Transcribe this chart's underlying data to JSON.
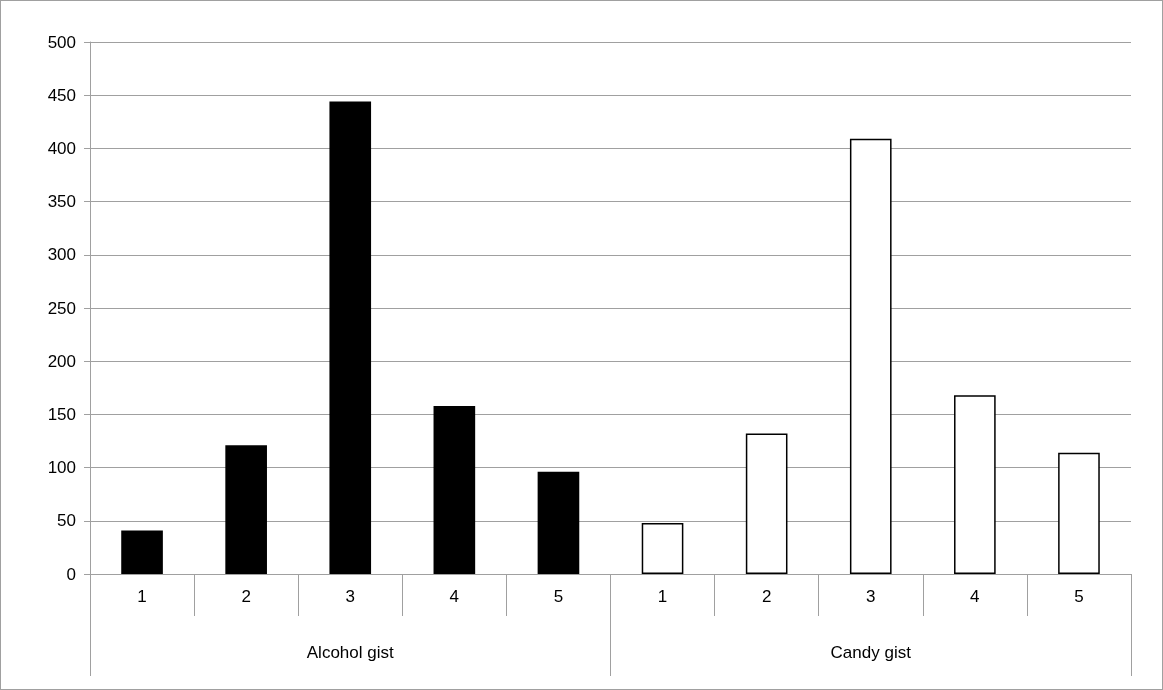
{
  "chart_data": {
    "type": "bar",
    "categories": [
      "1",
      "2",
      "3",
      "4",
      "5",
      "1",
      "2",
      "3",
      "4",
      "5"
    ],
    "series": [
      {
        "color": "#000000",
        "values": [
          41,
          121,
          444,
          158,
          96,
          null,
          null,
          null,
          null,
          null
        ]
      },
      {
        "color": "#ffffff",
        "values": [
          null,
          null,
          null,
          null,
          null,
          48,
          132,
          409,
          168,
          114
        ]
      }
    ],
    "ylim": [
      0,
      500
    ],
    "yticks": [
      0,
      50,
      100,
      150,
      200,
      250,
      300,
      350,
      400,
      450,
      500
    ],
    "grid": "y",
    "annotations": [
      "Alcohol gist",
      "Candy gist"
    ]
  }
}
